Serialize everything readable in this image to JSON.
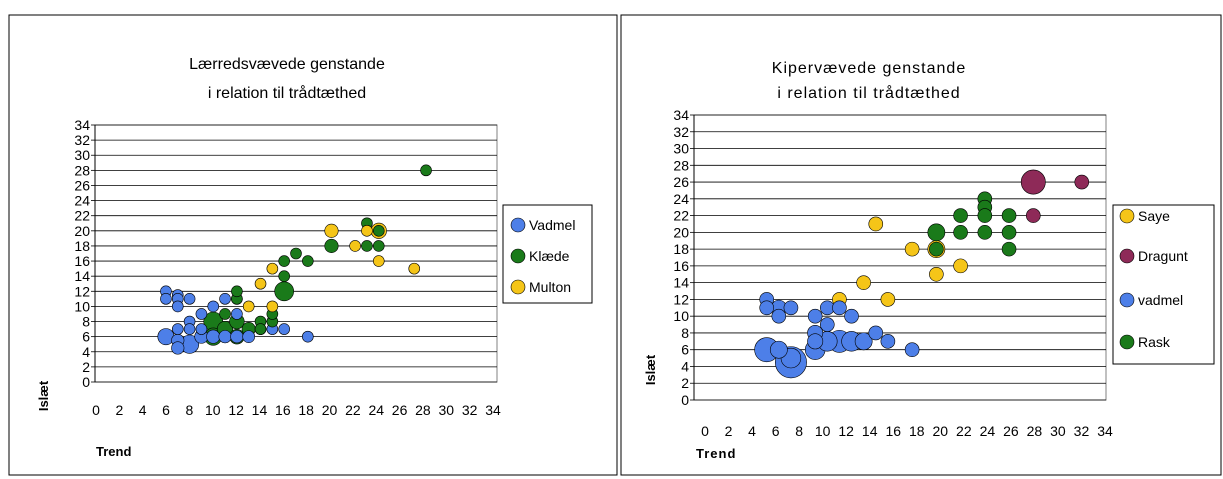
{
  "chart_data": [
    {
      "type": "scatter",
      "title_lines": [
        "Lærredsvævede genstande",
        "i relation til trådtæthed"
      ],
      "xlabel": "Trend",
      "ylabel": "Islæt",
      "xlim": [
        0,
        34
      ],
      "ylim": [
        0,
        34
      ],
      "xticks": [
        "0",
        "2",
        "4",
        "6",
        "8",
        "10",
        "12",
        "14",
        "16",
        "18",
        "20",
        "22",
        "24",
        "26",
        "28",
        "30",
        "32",
        "34"
      ],
      "yticks": [
        "0",
        "2",
        "4",
        "6",
        "8",
        "10",
        "12",
        "14",
        "16",
        "18",
        "20",
        "22",
        "24",
        "26",
        "28",
        "30",
        "32",
        "34"
      ],
      "grid": "horizontal",
      "legend_position": "right",
      "series": [
        {
          "name": "Vadmel",
          "color": "#4d7fe8",
          "points": [
            [
              6,
              12,
              1
            ],
            [
              6,
              11,
              1
            ],
            [
              7,
              11.5,
              1
            ],
            [
              7,
              11,
              1
            ],
            [
              8,
              11,
              1
            ],
            [
              7,
              10,
              1
            ],
            [
              8,
              8,
              1
            ],
            [
              9,
              9,
              1
            ],
            [
              10,
              10,
              1
            ],
            [
              11,
              11,
              1
            ],
            [
              12,
              11,
              1
            ],
            [
              7,
              7,
              1
            ],
            [
              8,
              7,
              1
            ],
            [
              9,
              7,
              1
            ],
            [
              6,
              6,
              2.2
            ],
            [
              7,
              5.5,
              1.3
            ],
            [
              7,
              4.5,
              1.3
            ],
            [
              8,
              5,
              2.8
            ],
            [
              9,
              6,
              1.5
            ],
            [
              10,
              6,
              1.5
            ],
            [
              11,
              6,
              1.3
            ],
            [
              12,
              6,
              1.3
            ],
            [
              12,
              9,
              1
            ],
            [
              13,
              6,
              1.2
            ],
            [
              14,
              7,
              1
            ],
            [
              15,
              7,
              1
            ],
            [
              16,
              7,
              1
            ],
            [
              18,
              6,
              1
            ]
          ]
        },
        {
          "name": "Klæde",
          "color": "#1a7a1a",
          "points": [
            [
              10,
              8,
              3
            ],
            [
              10,
              6,
              2.5
            ],
            [
              11,
              7,
              2
            ],
            [
              11,
              9,
              1
            ],
            [
              12,
              8,
              1.8
            ],
            [
              12,
              6,
              1.8
            ],
            [
              12,
              11,
              1
            ],
            [
              12,
              12,
              1
            ],
            [
              13,
              7,
              1.5
            ],
            [
              14,
              8,
              1
            ],
            [
              15,
              8,
              1
            ],
            [
              14,
              7,
              1
            ],
            [
              15,
              9,
              1
            ],
            [
              16,
              12,
              3
            ],
            [
              16,
              14,
              1
            ],
            [
              16,
              16,
              1
            ],
            [
              17,
              17,
              1
            ],
            [
              18,
              16,
              1
            ],
            [
              20,
              18,
              1.5
            ],
            [
              23,
              21,
              1
            ],
            [
              23,
              18,
              1
            ],
            [
              24,
              18,
              1
            ],
            [
              24,
              20,
              1
            ],
            [
              28,
              28,
              1
            ]
          ]
        },
        {
          "name": "Multon",
          "color": "#f5c518",
          "points": [
            [
              13,
              10,
              1
            ],
            [
              14,
              13,
              1
            ],
            [
              15,
              15,
              1
            ],
            [
              15,
              10,
              1
            ],
            [
              20,
              20,
              1.5
            ],
            [
              22,
              18,
              1
            ],
            [
              23,
              20,
              1
            ],
            [
              24,
              20,
              2
            ],
            [
              24,
              16,
              1
            ],
            [
              27,
              15,
              1
            ]
          ]
        }
      ]
    },
    {
      "type": "scatter",
      "title_lines": [
        "Kipervævede genstande",
        "i relation til trådtæthed"
      ],
      "xlabel": "Trend",
      "ylabel": "Islæt",
      "xlim": [
        0,
        34
      ],
      "ylim": [
        0,
        34
      ],
      "xticks": [
        "0",
        "2",
        "4",
        "6",
        "8",
        "10",
        "12",
        "14",
        "16",
        "18",
        "20",
        "22",
        "24",
        "26",
        "28",
        "30",
        "32",
        "34"
      ],
      "yticks": [
        "0",
        "2",
        "4",
        "6",
        "8",
        "10",
        "12",
        "14",
        "16",
        "18",
        "20",
        "22",
        "24",
        "26",
        "28",
        "30",
        "32",
        "34"
      ],
      "grid": "horizontal",
      "legend_position": "right",
      "series": [
        {
          "name": "Saye",
          "color": "#f5c518",
          "points": [
            [
              12,
              12,
              1
            ],
            [
              14,
              14,
              1
            ],
            [
              15,
              21,
              1
            ],
            [
              16,
              12,
              1
            ],
            [
              18,
              18,
              1
            ],
            [
              20,
              18,
              1.5
            ],
            [
              20,
              15,
              1
            ],
            [
              22,
              16,
              1
            ]
          ]
        },
        {
          "name": "Dragunt",
          "color": "#8e2a58",
          "points": [
            [
              28,
              26,
              3
            ],
            [
              28,
              22,
              1
            ],
            [
              32,
              26,
              1
            ]
          ]
        },
        {
          "name": "vadmel",
          "color": "#4d7fe8",
          "points": [
            [
              6,
              12,
              1
            ],
            [
              6,
              11,
              1
            ],
            [
              7,
              11,
              1.2
            ],
            [
              7,
              10,
              1
            ],
            [
              8,
              11,
              1
            ],
            [
              10,
              10,
              1
            ],
            [
              11,
              11,
              1
            ],
            [
              12,
              11,
              1
            ],
            [
              13,
              10,
              1
            ],
            [
              10,
              8,
              1.2
            ],
            [
              11,
              9,
              1
            ],
            [
              15,
              8,
              1
            ],
            [
              16,
              7,
              1
            ],
            [
              18,
              6,
              1
            ],
            [
              6,
              6,
              3
            ],
            [
              7,
              6,
              1.5
            ],
            [
              8,
              4.5,
              5
            ],
            [
              8,
              5,
              2
            ],
            [
              10,
              7,
              1.2
            ],
            [
              10,
              6,
              2
            ],
            [
              11,
              7,
              2
            ],
            [
              12,
              7,
              2.5
            ],
            [
              13,
              7,
              2
            ],
            [
              14,
              7,
              1.5
            ]
          ]
        },
        {
          "name": "Rask",
          "color": "#1a7a1a",
          "points": [
            [
              20,
              20,
              1.5
            ],
            [
              20,
              18,
              1
            ],
            [
              22,
              22,
              1
            ],
            [
              22,
              20,
              1
            ],
            [
              24,
              24,
              1
            ],
            [
              24,
              23,
              1
            ],
            [
              24,
              22,
              1
            ],
            [
              24,
              20,
              1
            ],
            [
              26,
              22,
              1
            ],
            [
              26,
              20,
              1
            ],
            [
              26,
              18,
              1
            ]
          ]
        }
      ]
    }
  ]
}
